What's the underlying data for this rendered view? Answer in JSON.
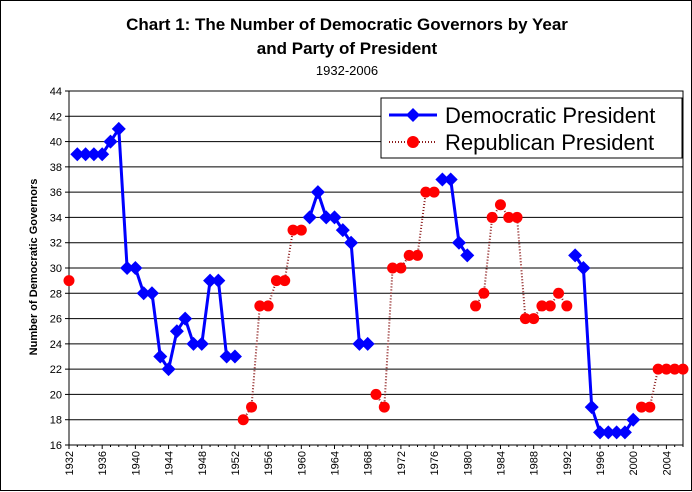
{
  "chart_data": {
    "type": "line",
    "title_line1": "Chart 1: The Number of Democratic Governors by Year",
    "title_line2": "and Party of President",
    "subtitle": "1932-2006",
    "ylabel": "Number of Democratic Governors",
    "xlabel": "",
    "xlim": [
      1932,
      2006
    ],
    "ylim": [
      16,
      44
    ],
    "y_tick_step": 2,
    "x_ticks": [
      1932,
      1936,
      1940,
      1944,
      1948,
      1952,
      1956,
      1960,
      1964,
      1968,
      1972,
      1976,
      1980,
      1984,
      1988,
      1992,
      1996,
      2000,
      2004
    ],
    "y_ticks": [
      16,
      18,
      20,
      22,
      24,
      26,
      28,
      30,
      32,
      34,
      36,
      38,
      40,
      42,
      44
    ],
    "grid": "horizontal",
    "legend_position": "top-right",
    "series": [
      {
        "name": "Democratic President",
        "color": "#0000ff",
        "marker": "diamond",
        "line_style": "solid",
        "segments": [
          [
            [
              1933,
              39
            ],
            [
              1934,
              39
            ],
            [
              1935,
              39
            ],
            [
              1936,
              39
            ],
            [
              1937,
              40
            ],
            [
              1938,
              41
            ],
            [
              1939,
              30
            ],
            [
              1940,
              30
            ],
            [
              1941,
              28
            ],
            [
              1942,
              28
            ],
            [
              1943,
              23
            ],
            [
              1944,
              22
            ],
            [
              1945,
              25
            ],
            [
              1946,
              26
            ],
            [
              1947,
              24
            ],
            [
              1948,
              24
            ],
            [
              1949,
              29
            ],
            [
              1950,
              29
            ],
            [
              1951,
              23
            ],
            [
              1952,
              23
            ]
          ],
          [
            [
              1961,
              34
            ],
            [
              1962,
              36
            ],
            [
              1963,
              34
            ],
            [
              1964,
              34
            ],
            [
              1965,
              33
            ],
            [
              1966,
              32
            ],
            [
              1967,
              24
            ],
            [
              1968,
              24
            ]
          ],
          [
            [
              1977,
              37
            ],
            [
              1978,
              37
            ],
            [
              1979,
              32
            ],
            [
              1980,
              31
            ]
          ],
          [
            [
              1993,
              31
            ],
            [
              1994,
              30
            ],
            [
              1995,
              19
            ],
            [
              1996,
              17
            ],
            [
              1997,
              17
            ],
            [
              1998,
              17
            ],
            [
              1999,
              17
            ],
            [
              2000,
              18
            ]
          ]
        ]
      },
      {
        "name": "Republican President",
        "color": "#ff0000",
        "line_color": "#8b1a1a",
        "marker": "circle",
        "line_style": "dotted",
        "segments": [
          [
            [
              1932,
              29
            ]
          ],
          [
            [
              1953,
              18
            ],
            [
              1954,
              19
            ],
            [
              1955,
              27
            ],
            [
              1956,
              27
            ],
            [
              1957,
              29
            ],
            [
              1958,
              29
            ],
            [
              1959,
              33
            ],
            [
              1960,
              33
            ]
          ],
          [
            [
              1969,
              20
            ],
            [
              1970,
              19
            ],
            [
              1971,
              30
            ],
            [
              1972,
              30
            ],
            [
              1973,
              31
            ],
            [
              1974,
              31
            ],
            [
              1975,
              36
            ],
            [
              1976,
              36
            ]
          ],
          [
            [
              1981,
              27
            ],
            [
              1982,
              28
            ],
            [
              1983,
              34
            ],
            [
              1984,
              35
            ],
            [
              1985,
              34
            ],
            [
              1986,
              34
            ],
            [
              1987,
              26
            ],
            [
              1988,
              26
            ],
            [
              1989,
              27
            ],
            [
              1990,
              27
            ],
            [
              1991,
              28
            ],
            [
              1992,
              27
            ]
          ],
          [
            [
              2001,
              19
            ],
            [
              2002,
              19
            ],
            [
              2003,
              22
            ],
            [
              2004,
              22
            ],
            [
              2005,
              22
            ],
            [
              2006,
              22
            ]
          ]
        ]
      }
    ]
  }
}
